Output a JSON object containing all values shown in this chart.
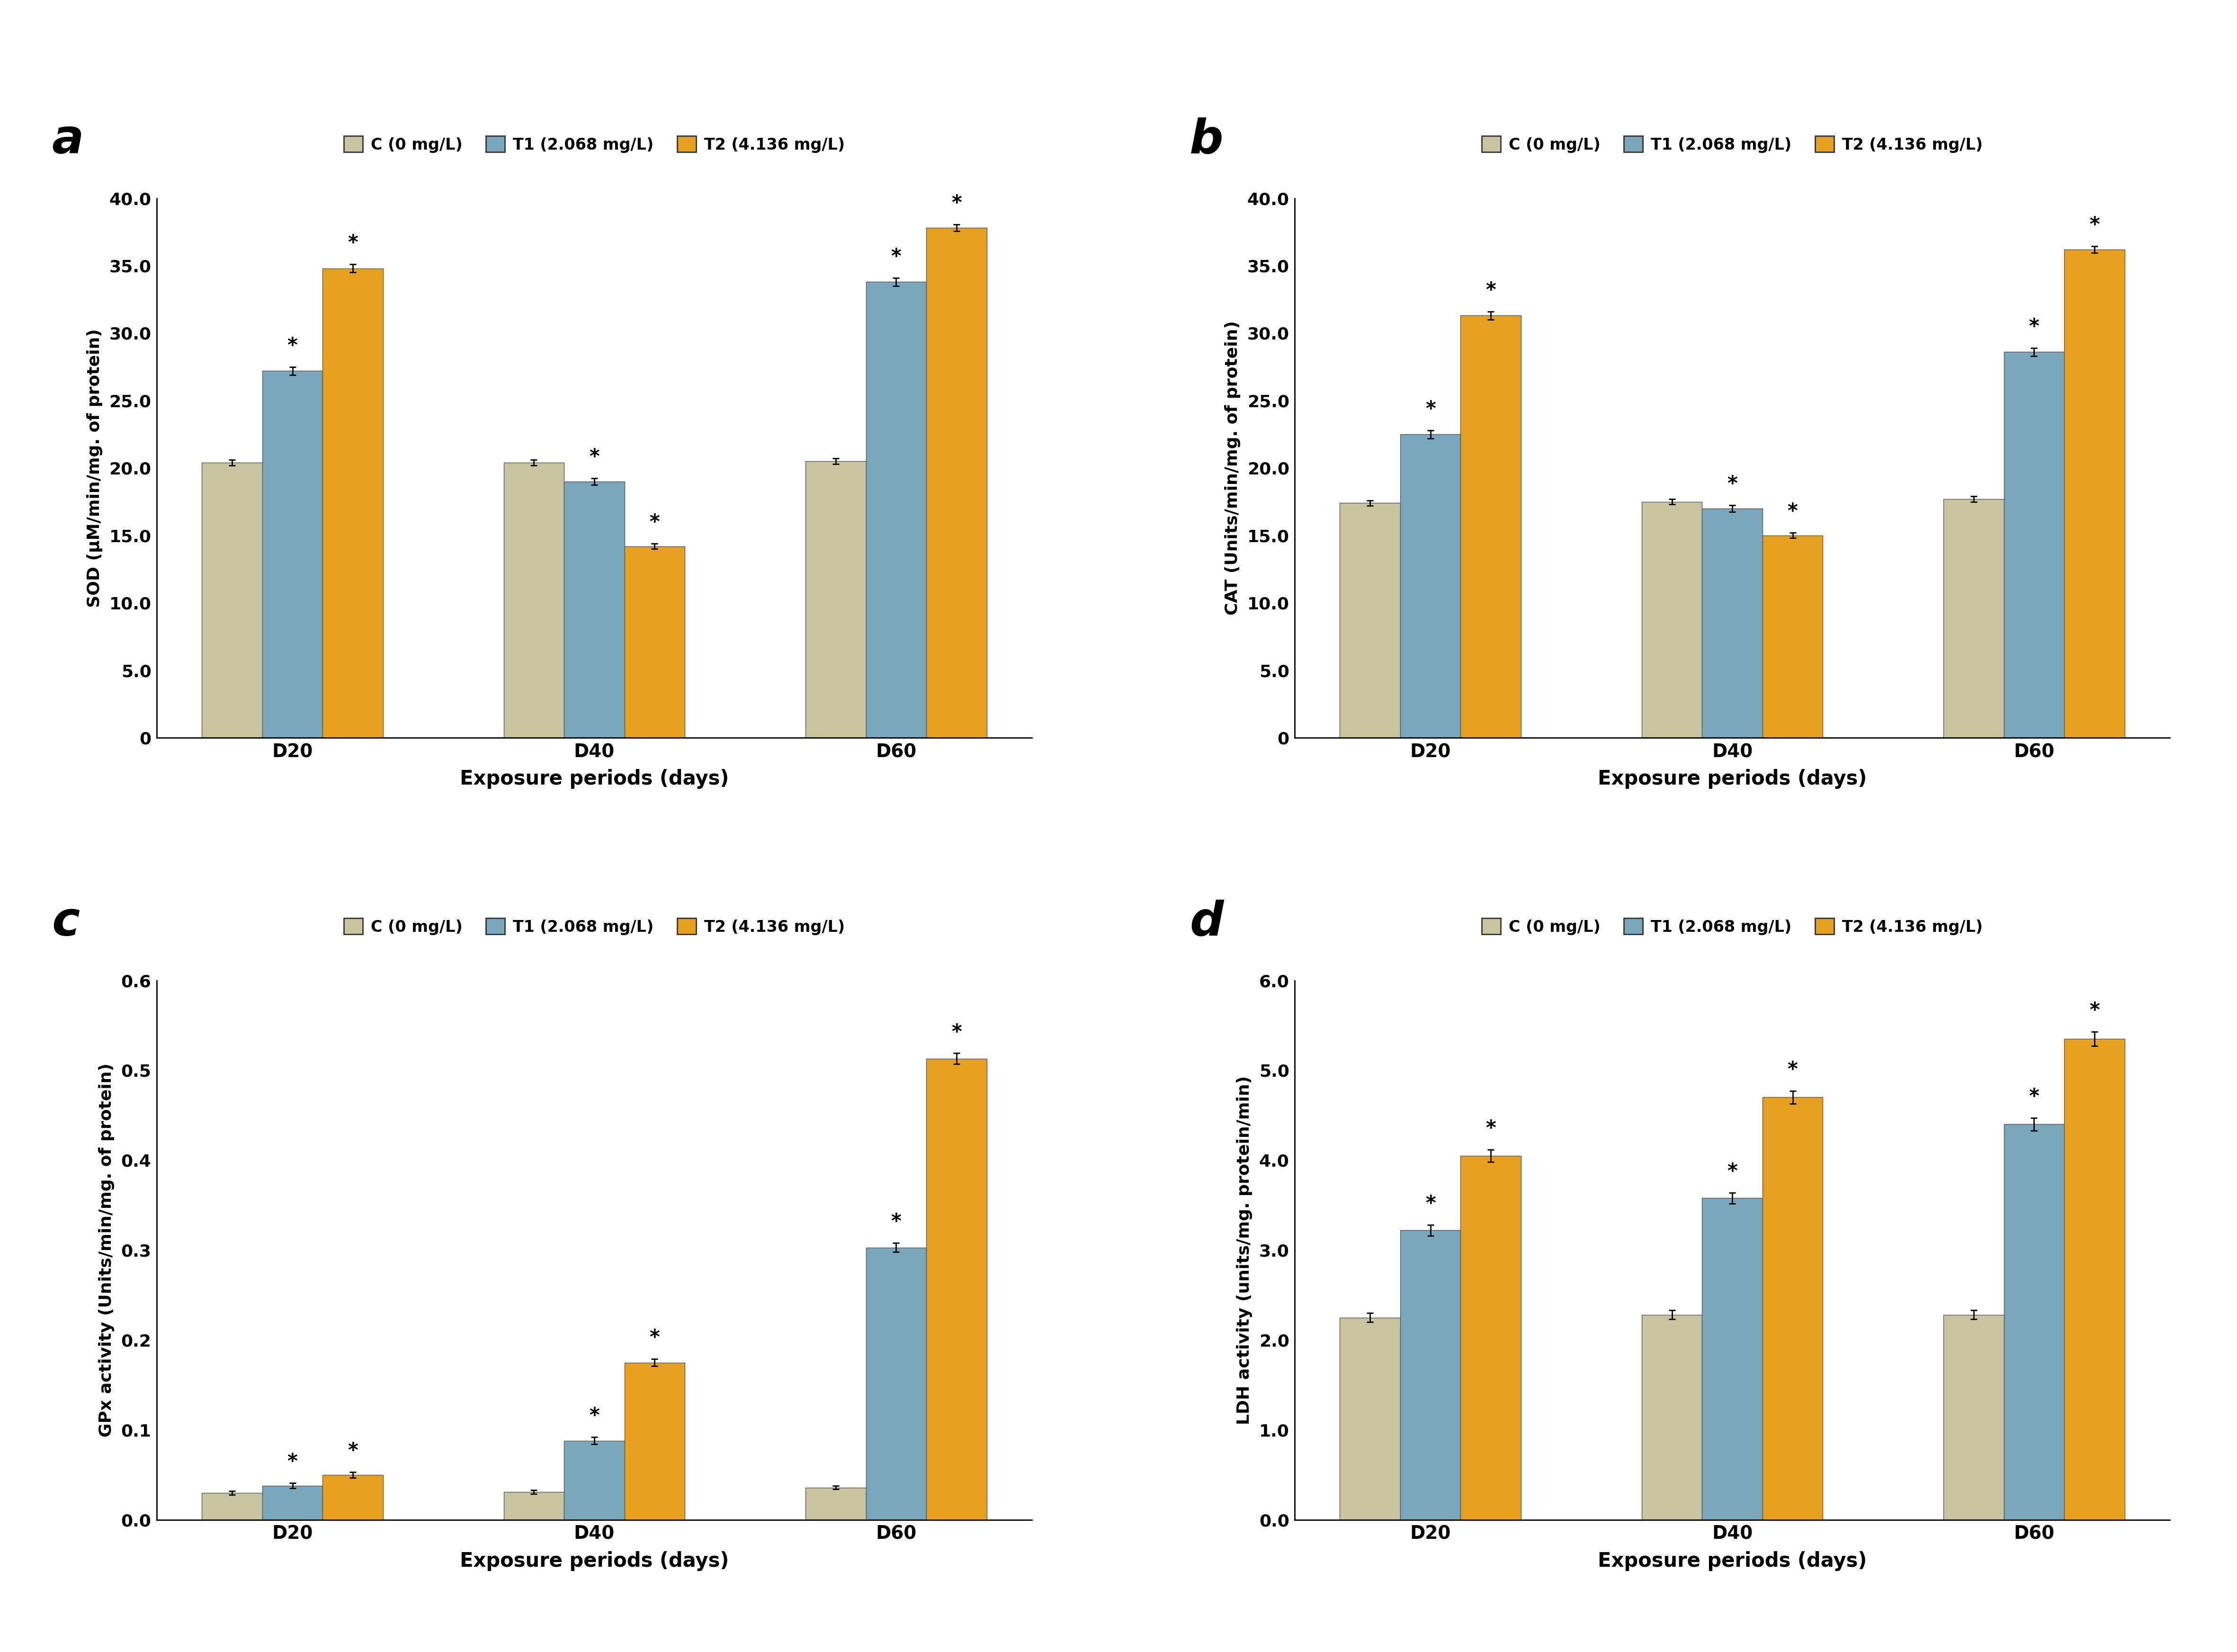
{
  "color_C": "#C8C4A0",
  "color_T1": "#7BA7BC",
  "color_T2": "#E8A020",
  "legend_labels": [
    "C (0 mg/L)",
    "T1 (2.068 mg/L)",
    "T2 (4.136 mg/L)"
  ],
  "x_labels": [
    "D20",
    "D40",
    "D60"
  ],
  "xlabel": "Exposure periods (days)",
  "panel_labels": [
    "a",
    "b",
    "c",
    "d"
  ],
  "sod": {
    "ylabel": "SOD (μM/min/mg. of protein)",
    "ylim": [
      0,
      40
    ],
    "yticks": [
      0.0,
      5.0,
      10.0,
      15.0,
      20.0,
      25.0,
      30.0,
      35.0,
      40.0
    ],
    "ytick_labels": [
      "0",
      "5.0",
      "10.0",
      "15.0",
      "20.0",
      "25.0",
      "30.0",
      "35.0",
      "40.0"
    ],
    "values": {
      "C": [
        20.4,
        20.4,
        20.5
      ],
      "T1": [
        27.2,
        19.0,
        33.8
      ],
      "T2": [
        34.8,
        14.2,
        37.8
      ]
    },
    "errors": {
      "C": [
        0.2,
        0.2,
        0.2
      ],
      "T1": [
        0.3,
        0.25,
        0.3
      ],
      "T2": [
        0.3,
        0.2,
        0.25
      ]
    },
    "sig_C": [
      false,
      false,
      false
    ],
    "sig_T1": [
      true,
      true,
      true
    ],
    "sig_T2": [
      true,
      true,
      true
    ]
  },
  "cat": {
    "ylabel": "CAT (Units/min/mg. of protein)",
    "ylim": [
      0,
      40
    ],
    "yticks": [
      0.0,
      5.0,
      10.0,
      15.0,
      20.0,
      25.0,
      30.0,
      35.0,
      40.0
    ],
    "ytick_labels": [
      "0",
      "5.0",
      "10.0",
      "15.0",
      "20.0",
      "25.0",
      "30.0",
      "35.0",
      "40.0"
    ],
    "values": {
      "C": [
        17.4,
        17.5,
        17.7
      ],
      "T1": [
        22.5,
        17.0,
        28.6
      ],
      "T2": [
        31.3,
        15.0,
        36.2
      ]
    },
    "errors": {
      "C": [
        0.2,
        0.2,
        0.2
      ],
      "T1": [
        0.3,
        0.25,
        0.3
      ],
      "T2": [
        0.3,
        0.2,
        0.25
      ]
    },
    "sig_C": [
      false,
      false,
      false
    ],
    "sig_T1": [
      true,
      true,
      true
    ],
    "sig_T2": [
      true,
      true,
      true
    ]
  },
  "gpx": {
    "ylabel": "GPx activity (Units/min/mg. of protein)",
    "ylim": [
      0,
      0.6
    ],
    "yticks": [
      0.0,
      0.1,
      0.2,
      0.3,
      0.4,
      0.5,
      0.6
    ],
    "ytick_labels": [
      "0.0",
      "0.1",
      "0.2",
      "0.3",
      "0.4",
      "0.5",
      "0.6"
    ],
    "values": {
      "C": [
        0.03,
        0.031,
        0.036
      ],
      "T1": [
        0.038,
        0.088,
        0.303
      ],
      "T2": [
        0.05,
        0.175,
        0.513
      ]
    },
    "errors": {
      "C": [
        0.002,
        0.002,
        0.002
      ],
      "T1": [
        0.003,
        0.004,
        0.005
      ],
      "T2": [
        0.003,
        0.004,
        0.006
      ]
    },
    "sig_C": [
      false,
      false,
      false
    ],
    "sig_T1": [
      true,
      true,
      true
    ],
    "sig_T2": [
      true,
      true,
      true
    ]
  },
  "ldh": {
    "ylabel": "LDH activity (units/mg. protein/min)",
    "ylim": [
      0,
      6.0
    ],
    "yticks": [
      0.0,
      1.0,
      2.0,
      3.0,
      4.0,
      5.0,
      6.0
    ],
    "ytick_labels": [
      "0.0",
      "1.0",
      "2.0",
      "3.0",
      "4.0",
      "5.0",
      "6.0"
    ],
    "values": {
      "C": [
        2.25,
        2.28,
        2.28
      ],
      "T1": [
        3.22,
        3.58,
        4.4
      ],
      "T2": [
        4.05,
        4.7,
        5.35
      ]
    },
    "errors": {
      "C": [
        0.05,
        0.05,
        0.05
      ],
      "T1": [
        0.06,
        0.06,
        0.07
      ],
      "T2": [
        0.07,
        0.07,
        0.08
      ]
    },
    "sig_C": [
      false,
      false,
      false
    ],
    "sig_T1": [
      true,
      true,
      true
    ],
    "sig_T2": [
      true,
      true,
      true
    ]
  }
}
